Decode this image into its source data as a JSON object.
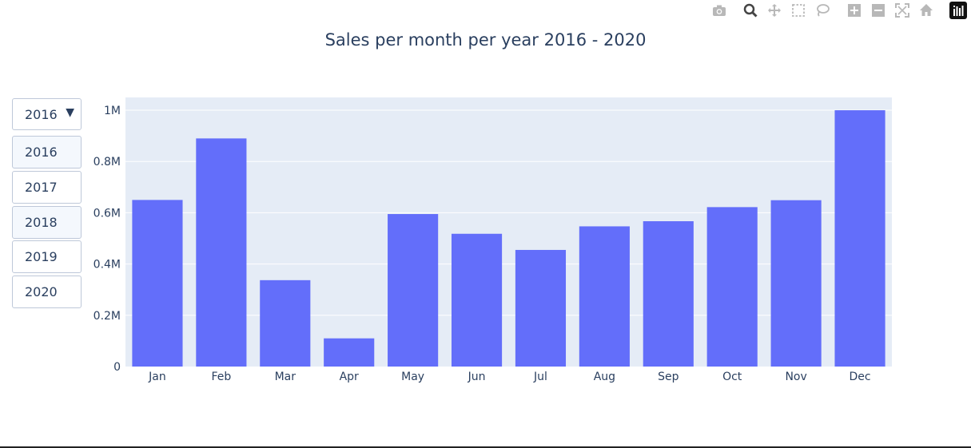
{
  "toolbar": {
    "icons": [
      "camera-icon",
      "zoom-icon",
      "pan-icon",
      "box-select-icon",
      "lasso-icon",
      "zoom-in-icon",
      "zoom-out-icon",
      "autoscale-icon",
      "home-icon",
      "plotly-logo-icon"
    ]
  },
  "dropdown": {
    "selected": "2016",
    "arrow": "▼",
    "options": [
      "2016",
      "2017",
      "2018",
      "2019",
      "2020"
    ]
  },
  "colors": {
    "bar": "#636efa",
    "plot_bg": "#e5ecf6",
    "text": "#2a3f5f"
  },
  "chart_data": {
    "type": "bar",
    "title": "Sales per month per year 2016 - 2020",
    "categories": [
      "Jan",
      "Feb",
      "Mar",
      "Apr",
      "May",
      "Jun",
      "Jul",
      "Aug",
      "Sep",
      "Oct",
      "Nov",
      "Dec"
    ],
    "values": [
      650000,
      890000,
      337000,
      110000,
      595000,
      518000,
      455000,
      547000,
      567000,
      622000,
      649000,
      1000000
    ],
    "ylim": [
      0,
      1050000
    ],
    "yticks": [
      0,
      200000,
      400000,
      600000,
      800000,
      1000000
    ],
    "ytick_labels": [
      "0",
      "0.2M",
      "0.4M",
      "0.6M",
      "0.8M",
      "1M"
    ],
    "grid": true
  }
}
